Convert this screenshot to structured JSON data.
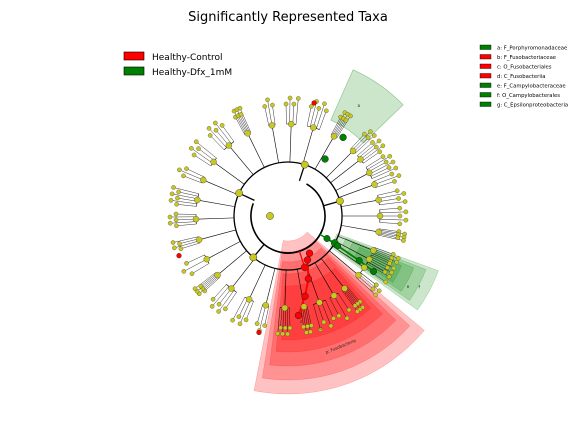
{
  "chart_data": {
    "type": "cladogram",
    "title": "Significantly Represented Taxa",
    "groups": [
      {
        "name": "Healthy-Control",
        "color": "#ff0000"
      },
      {
        "name": "Healthy-Dfx_1mM",
        "color": "#008000"
      }
    ],
    "taxa": [
      {
        "key": "a",
        "label": "a: F_Porphyromonadaceae",
        "group": "Healthy-Dfx_1mM"
      },
      {
        "key": "b",
        "label": "b: F_Fusobacteriaceae",
        "group": "Healthy-Control"
      },
      {
        "key": "c",
        "label": "c: O_Fusobacteriales",
        "group": "Healthy-Control"
      },
      {
        "key": "d",
        "label": "d: C_Fusobacteriia",
        "group": "Healthy-Control"
      },
      {
        "key": "e",
        "label": "e: F_Campylobacteraceae",
        "group": "Healthy-Dfx_1mM"
      },
      {
        "key": "f",
        "label": "f: O_Campylobacterales",
        "group": "Healthy-Dfx_1mM"
      },
      {
        "key": "g",
        "label": "g: C_Epsilonproteobacteria",
        "group": "Healthy-Dfx_1mM"
      }
    ],
    "clade_labels": [
      {
        "text": "p: Fusobacteria",
        "group": "Healthy-Control"
      }
    ]
  },
  "colors": {
    "node": "#c8c81e",
    "control": "#ff0000",
    "dfx": "#008000"
  }
}
